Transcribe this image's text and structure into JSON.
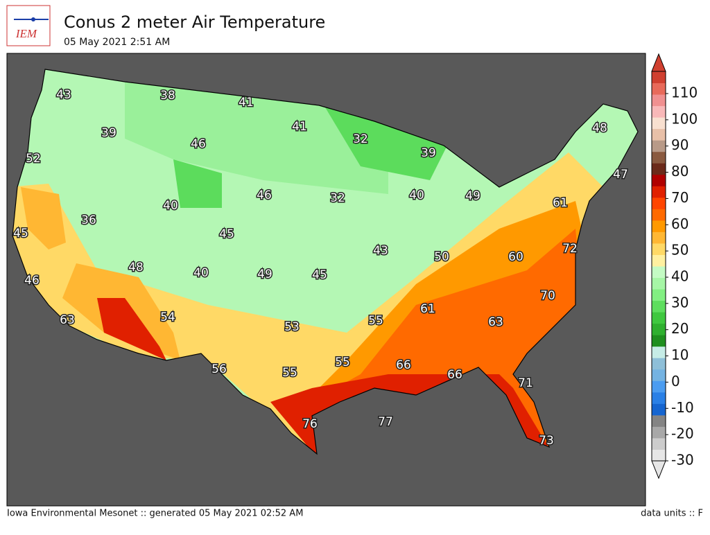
{
  "header": {
    "logo": "IEM",
    "title": "Conus 2 meter Air Temperature",
    "subtitle": "05 May 2021 2:51 AM"
  },
  "footer": {
    "left": "Iowa Environmental Mesonet :: generated 05 May 2021 02:52 AM",
    "right": "data units :: F"
  },
  "colorbar": {
    "ticks": [
      -30,
      -20,
      -10,
      0,
      10,
      20,
      30,
      40,
      50,
      60,
      70,
      80,
      90,
      100,
      110
    ],
    "colors": [
      "#e6e6e6",
      "#cccccc",
      "#a8a8a8",
      "#848484",
      "#1565d0",
      "#2a80e6",
      "#4b9cf0",
      "#74b3e2",
      "#8ebfd8",
      "#c6ece6",
      "#1f8f1f",
      "#2fb02f",
      "#3fc83f",
      "#5ede5e",
      "#82ef82",
      "#a6f6a6",
      "#c4fbc4",
      "#fff0a0",
      "#ffd966",
      "#ffb733",
      "#ff9900",
      "#ff6a00",
      "#ff4500",
      "#e02000",
      "#b00000",
      "#6b2a1a",
      "#8a5a40",
      "#b89a88",
      "#e8c0a8",
      "#f8e0d0",
      "#f8b8b8",
      "#f09090",
      "#e86a5a",
      "#d04030"
    ]
  },
  "map": {
    "labels": [
      43,
      38,
      41,
      41,
      32,
      39,
      48,
      47,
      52,
      39,
      46,
      46,
      32,
      40,
      49,
      61,
      45,
      36,
      40,
      45,
      43,
      50,
      60,
      72,
      46,
      48,
      40,
      49,
      45,
      70,
      61,
      63,
      54,
      53,
      55,
      63,
      56,
      55,
      55,
      66,
      66,
      71,
      77,
      76,
      73
    ]
  }
}
